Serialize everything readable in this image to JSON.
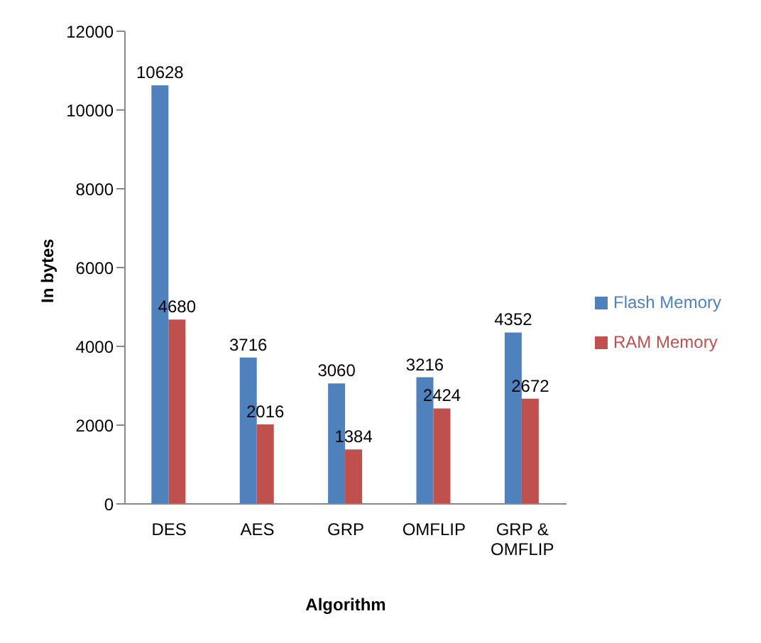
{
  "chart_data": {
    "type": "bar",
    "xlabel": "Algorithm",
    "ylabel": "In bytes",
    "categories": [
      "DES",
      "AES",
      "GRP",
      "OMFLIP",
      "GRP & OMFLIP"
    ],
    "series": [
      {
        "name": "Flash Memory",
        "color": "#4f81bd",
        "values": [
          10628,
          3716,
          3060,
          3216,
          4352
        ]
      },
      {
        "name": "RAM Memory",
        "color": "#c0504d",
        "values": [
          4680,
          2016,
          1384,
          2424,
          2672
        ]
      }
    ],
    "ylim": [
      0,
      12000
    ],
    "yticks": [
      0,
      2000,
      4000,
      6000,
      8000,
      10000,
      12000
    ],
    "grid": false,
    "legend": "right",
    "data_labels": true
  }
}
